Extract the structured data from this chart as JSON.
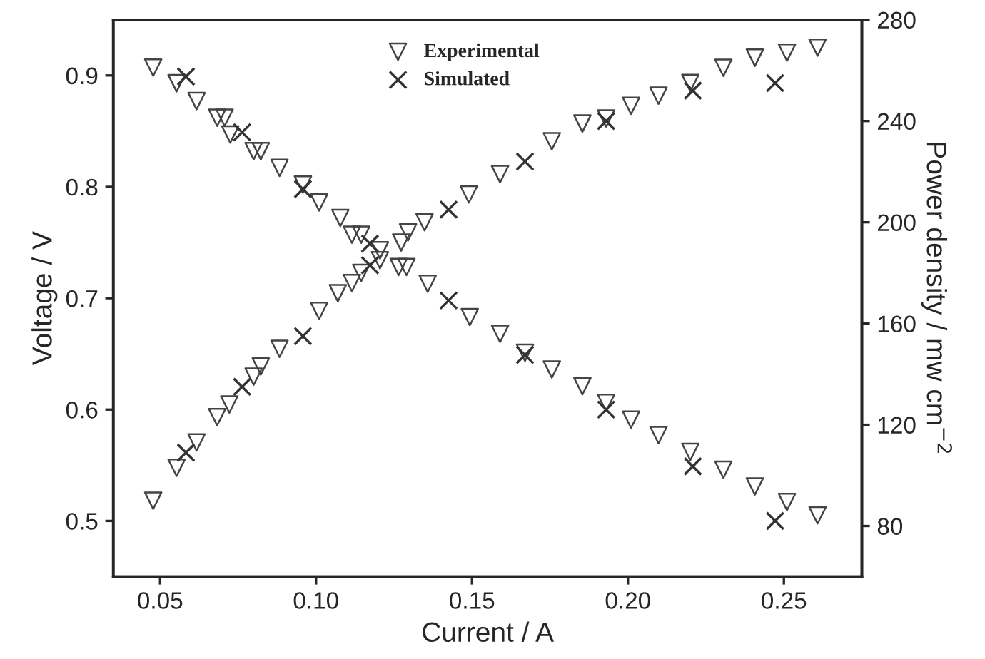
{
  "chart_data": {
    "type": "scatter",
    "xlabel": "Current / A",
    "ylabel": "Voltage / V",
    "y2label": "Power density / mw cm$^{−2}$",
    "xlim": [
      0.035,
      0.275
    ],
    "xticks": [
      {
        "value": 0.05,
        "label": "0.05"
      },
      {
        "value": 0.1,
        "label": "0.10"
      },
      {
        "value": 0.15,
        "label": "0.15"
      },
      {
        "value": 0.2,
        "label": "0.20"
      },
      {
        "value": 0.25,
        "label": "0.25"
      }
    ],
    "ylim": [
      0.45,
      0.95
    ],
    "yticks": [
      0.5,
      0.6,
      0.7,
      0.8,
      0.9
    ],
    "y2lim": [
      60,
      280
    ],
    "y2ticks": [
      80,
      120,
      160,
      200,
      240,
      280
    ],
    "legend": "top",
    "grid": false,
    "series": [
      {
        "name": "Experimental",
        "color": "#444444",
        "marker": "triangle",
        "x": [
          0.0478,
          0.0553,
          0.0617,
          0.0683,
          0.0707,
          0.0725,
          0.08,
          0.0823,
          0.0883,
          0.0958,
          0.101,
          0.1078,
          0.1115,
          0.1145,
          0.1205,
          0.1265,
          0.129,
          0.1358,
          0.1493,
          0.159,
          0.167,
          0.1756,
          0.1854,
          0.193,
          0.201,
          0.2098,
          0.22,
          0.2306,
          0.2407,
          0.251,
          0.2608
        ],
        "values": [
          0.907,
          0.893,
          0.877,
          0.862,
          0.862,
          0.847,
          0.832,
          0.832,
          0.817,
          0.802,
          0.786,
          0.772,
          0.757,
          0.757,
          0.743,
          0.728,
          0.728,
          0.713,
          0.683,
          0.668,
          0.651,
          0.636,
          0.621,
          0.606,
          0.591,
          0.577,
          0.562,
          0.546,
          0.531,
          0.517,
          0.505
        ]
      },
      {
        "name": "Simulated",
        "color": "#333333",
        "marker": "cross",
        "x": [
          0.0583,
          0.0763,
          0.0958,
          0.1173,
          0.1425,
          0.167,
          0.193,
          0.2208,
          0.2472
        ],
        "values": [
          0.899,
          0.849,
          0.798,
          0.749,
          0.698,
          0.649,
          0.6,
          0.549,
          0.5
        ]
      },
      {
        "color": "#444444",
        "marker": "triangle",
        "axis": "y2",
        "x": [
          0.0478,
          0.0553,
          0.0617,
          0.0683,
          0.0722,
          0.08,
          0.0823,
          0.0883,
          0.101,
          0.107,
          0.1115,
          0.1145,
          0.1205,
          0.1273,
          0.1295,
          0.1348,
          0.149,
          0.159,
          0.1756,
          0.1854,
          0.193,
          0.201,
          0.2098,
          0.22,
          0.2306,
          0.2407,
          0.251,
          0.2608
        ],
        "values": [
          90,
          103,
          113,
          123,
          128,
          139,
          143,
          150,
          165,
          172,
          176,
          180,
          185,
          192,
          196,
          200,
          211,
          219,
          232,
          239,
          241,
          246,
          250,
          255,
          261,
          265,
          267,
          269
        ]
      },
      {
        "color": "#333333",
        "marker": "cross",
        "axis": "y2",
        "x": [
          0.0583,
          0.0763,
          0.0958,
          0.1173,
          0.1425,
          0.167,
          0.193,
          0.2208,
          0.2472
        ],
        "values": [
          109,
          135,
          155,
          183,
          205,
          224,
          240,
          252,
          255
        ]
      }
    ]
  }
}
